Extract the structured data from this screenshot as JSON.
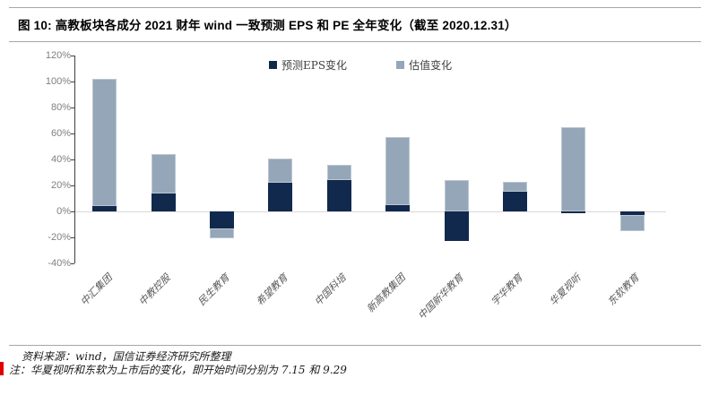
{
  "header": {
    "title": "图 10:  高教板块各成分 2021 财年 wind 一致预测 EPS 和 PE 全年变化（截至 2020.12.31）"
  },
  "chart_data": {
    "type": "bar",
    "stacked": true,
    "title": "高教板块各成分 2021 财年 wind 一致预测 EPS 和 PE 全年变化（截至 2020.12.31）",
    "categories": [
      "中汇集团",
      "中教控股",
      "民生教育",
      "希望教育",
      "中国科培",
      "新高教集团",
      "中国新华教育",
      "宇华教育",
      "华夏视听",
      "东软教育"
    ],
    "series": [
      {
        "name": "预测EPS变化",
        "color": "#12294e",
        "values": [
          4,
          14,
          -13,
          22,
          24,
          5,
          -23,
          15,
          -1,
          -3
        ]
      },
      {
        "name": "估值变化",
        "color": "#94a6b8",
        "values": [
          98,
          30,
          -8,
          19,
          12,
          52,
          24,
          8,
          65,
          -12
        ]
      }
    ],
    "y_ticks": [
      "120%",
      "100%",
      "80%",
      "60%",
      "40%",
      "20%",
      "0%",
      "-20%",
      "-40%"
    ],
    "ylim": [
      -40,
      120
    ],
    "xlabel": "",
    "ylabel": "",
    "legend_position": "top-center",
    "grid": "zero-baseline-only"
  },
  "footer": {
    "source": "资料来源：wind，国信证券经济研究所整理",
    "note": "注：华夏视听和东软为上市后的变化，即开始时间分别为 7.15 和 9.29"
  }
}
